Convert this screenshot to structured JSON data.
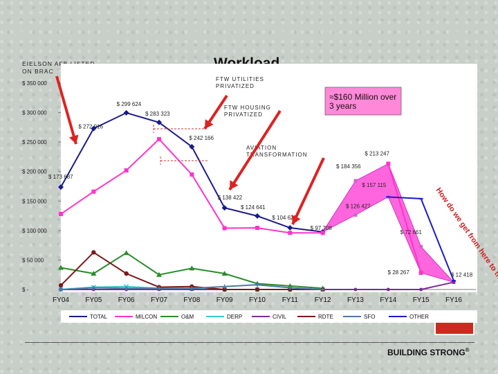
{
  "slide": {
    "title": "Workload",
    "brand": "BUILDING STRONG",
    "brand_mark": "®"
  },
  "annotations": {
    "eielson": "EIELSON AFB LISTED ON BRAC",
    "ftw_utilities": "FTW UTILITIES PRIVATIZED",
    "ftw_housing": "FTW HOUSING PRIVATIZED",
    "aviation": "AVIATION TRANSFORMATION",
    "callout": "≈$160 Million over 3 years",
    "question": "How do we get from here to there?"
  },
  "colors": {
    "total": "#1a1a8c",
    "milcon": "#ff33cc",
    "om": "#2a8c2a",
    "derp": "#33cccc",
    "civil": "#7a2a9c",
    "rdte": "#7a1a1a",
    "sfo": "#4a7aa8",
    "other": "#1a1acc",
    "callout_fill": "#ff88d8",
    "band_fill": "#ff66dd",
    "arrow": "#dd2222"
  },
  "chart_data": {
    "type": "line",
    "categories": [
      "FY04",
      "FY05",
      "FY06",
      "FY07",
      "FY08",
      "FY09",
      "FY10",
      "FY11",
      "FY12",
      "FY13",
      "FY14",
      "FY15",
      "FY16"
    ],
    "ylim": [
      0,
      360000
    ],
    "yticks": [
      {
        "value": 0,
        "label": "$ -"
      },
      {
        "value": 50000,
        "label": "$ 50 000"
      },
      {
        "value": 100000,
        "label": "$ 100 000"
      },
      {
        "value": 150000,
        "label": "$ 150 000"
      },
      {
        "value": 200000,
        "label": "$ 200 000"
      },
      {
        "value": 250000,
        "label": "$ 250 000"
      },
      {
        "value": 300000,
        "label": "$ 300 000"
      },
      {
        "value": 350000,
        "label": "$ 350 000"
      }
    ],
    "grid": false,
    "legend": "bottom",
    "series": [
      {
        "name": "TOTAL",
        "key": "total",
        "values": [
          173687,
          272916,
          299624,
          283323,
          242166,
          138422,
          124641,
          104623,
          97708,
          null,
          null,
          null,
          null
        ]
      },
      {
        "name": "MILCON",
        "key": "milcon",
        "values": [
          128000,
          166000,
          202000,
          255000,
          195000,
          104000,
          104500,
          96000,
          96000,
          null,
          213247,
          28267,
          null
        ]
      },
      {
        "name": "O&M",
        "key": "om",
        "values": [
          37000,
          27000,
          62000,
          25000,
          36000,
          27000,
          10000,
          6000,
          2000,
          null,
          null,
          null,
          null
        ]
      },
      {
        "name": "DERP",
        "key": "derp",
        "values": [
          0,
          4000,
          5000,
          2000,
          1000,
          0,
          0,
          0,
          0,
          null,
          null,
          null,
          null
        ]
      },
      {
        "name": "CIVIL",
        "key": "civil",
        "values": [
          0,
          0,
          0,
          0,
          0,
          0,
          0,
          0,
          0,
          0,
          0,
          0,
          12418
        ]
      },
      {
        "name": "RDTE",
        "key": "rdte",
        "values": [
          7000,
          63000,
          27000,
          4000,
          5000,
          0,
          0,
          0,
          0,
          null,
          null,
          null,
          null
        ]
      },
      {
        "name": "SFO",
        "key": "sfo",
        "values": [
          0,
          3000,
          2000,
          2000,
          2000,
          5000,
          8000,
          3000,
          0,
          null,
          null,
          null,
          null
        ]
      },
      {
        "name": "OTHER",
        "key": "other",
        "values": [
          null,
          null,
          null,
          null,
          null,
          null,
          null,
          null,
          null,
          null,
          157000,
          154000,
          15000
        ]
      }
    ],
    "band": {
      "upper": [
        [
          8,
          97708
        ],
        [
          9,
          184356
        ],
        [
          10,
          213247
        ],
        [
          11,
          72661
        ],
        [
          12,
          12418
        ]
      ],
      "lower": [
        [
          8,
          97708
        ],
        [
          9,
          126427
        ],
        [
          10,
          157115
        ],
        [
          11,
          28267
        ],
        [
          12,
          12418
        ]
      ]
    },
    "data_labels": [
      {
        "text": "$ 173 687",
        "x": 0,
        "y": 173687
      },
      {
        "text": "$ 272 916",
        "x": 1,
        "y": 272916
      },
      {
        "text": "$ 299 624",
        "x": 2,
        "y": 299624
      },
      {
        "text": "$ 283 323",
        "x": 3,
        "y": 283323
      },
      {
        "text": "$ 242 166",
        "x": 4,
        "y": 242166
      },
      {
        "text": "$ 138 422",
        "x": 5,
        "y": 138422
      },
      {
        "text": "$ 124 641",
        "x": 6,
        "y": 124641
      },
      {
        "text": "$ 104 623",
        "x": 7,
        "y": 104623
      },
      {
        "text": "$ 97 708",
        "x": 8,
        "y": 97708
      },
      {
        "text": "$ 184 356",
        "x": 9,
        "y": 184356
      },
      {
        "text": "$ 126 427",
        "x": 9,
        "y": 126427
      },
      {
        "text": "$ 213 247",
        "x": 10,
        "y": 213247
      },
      {
        "text": "$ 157 115",
        "x": 10,
        "y": 157115
      },
      {
        "text": "$ 72 661",
        "x": 11,
        "y": 72661
      },
      {
        "text": "$ 28 267",
        "x": 11,
        "y": 28267
      },
      {
        "text": "$ 12 418",
        "x": 12,
        "y": 12418
      }
    ]
  }
}
